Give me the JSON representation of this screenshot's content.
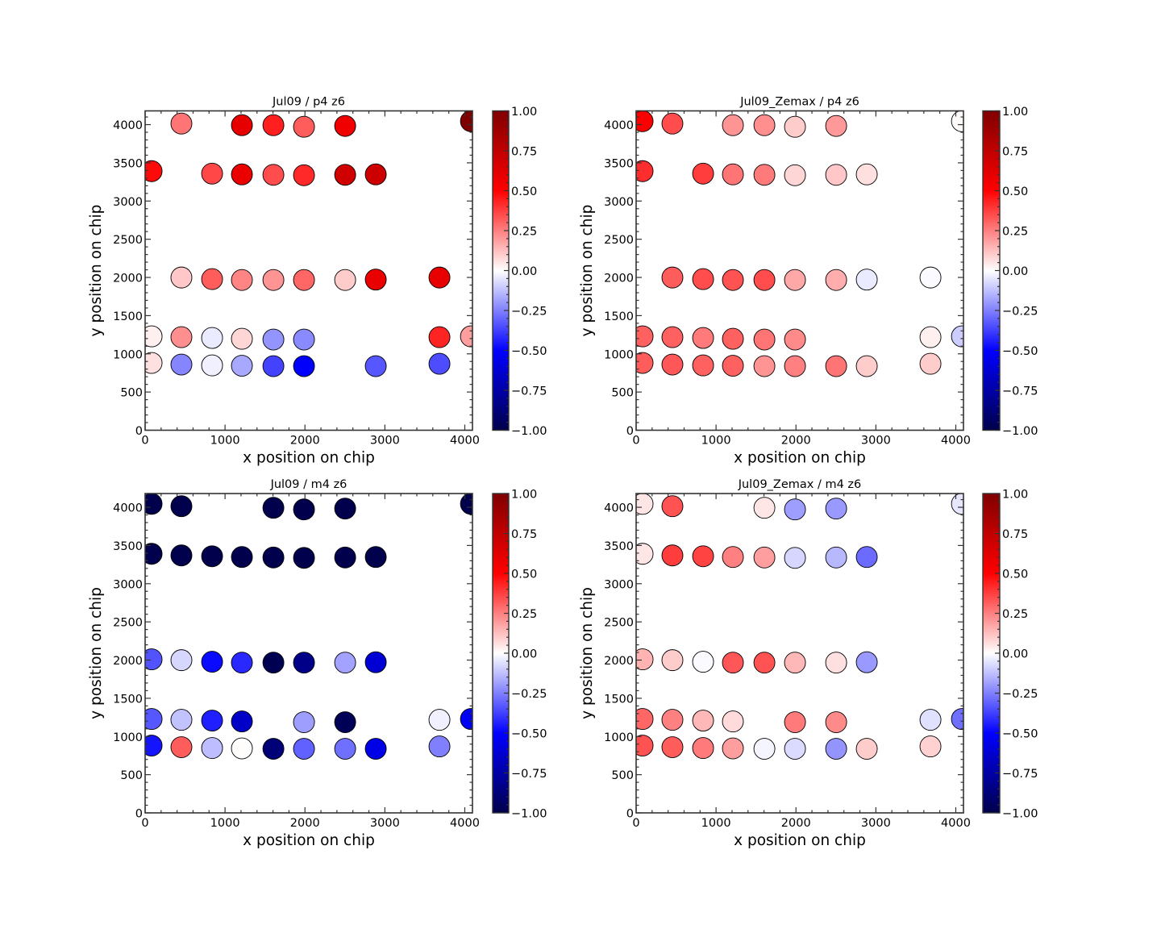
{
  "figure": {
    "colormap": "seismic",
    "colormap_stops": [
      {
        "v": -1.0,
        "color": "#00004c"
      },
      {
        "v": -0.5,
        "color": "#0000ff"
      },
      {
        "v": 0.0,
        "color": "#ffffff"
      },
      {
        "v": 0.5,
        "color": "#ff0000"
      },
      {
        "v": 1.0,
        "color": "#800000"
      }
    ],
    "edge_color": "#000000",
    "spine_color": "#333333"
  },
  "chart_data": [
    {
      "type": "scatter",
      "title": "Jul09 / p4 z6",
      "xlabel": "x position on chip",
      "ylabel": "y position on chip",
      "xlim": [
        0,
        4096
      ],
      "ylim": [
        0,
        4180
      ],
      "xticks": [
        0,
        1000,
        2000,
        3000,
        4000
      ],
      "xtick_labels": [
        "0",
        "1000",
        "2000",
        "3000",
        "4000"
      ],
      "yticks": [
        0,
        500,
        1000,
        1500,
        2000,
        2500,
        3000,
        3500,
        4000
      ],
      "ytick_labels": [
        "0",
        "500",
        "1000",
        "1500",
        "2000",
        "2500",
        "3000",
        "3500",
        "4000"
      ],
      "grid": false,
      "colorbar": {
        "vmin": -1.0,
        "vmax": 1.0,
        "ticks": [
          1.0,
          0.75,
          0.5,
          0.25,
          0.0,
          -0.25,
          -0.5,
          -0.75,
          -1.0
        ],
        "tick_labels": [
          "1.00",
          "0.75",
          "0.50",
          "0.25",
          "0.00",
          "−0.25",
          "−0.50",
          "−0.75",
          "−1.00"
        ]
      },
      "points": [
        {
          "x": 454,
          "y": 4014,
          "c": 0.27
        },
        {
          "x": 1211,
          "y": 3993,
          "c": 0.6
        },
        {
          "x": 1605,
          "y": 3993,
          "c": 0.44
        },
        {
          "x": 1988,
          "y": 3972,
          "c": 0.32
        },
        {
          "x": 2503,
          "y": 3983,
          "c": 0.56
        },
        {
          "x": 4077,
          "y": 4045,
          "c": 1.0
        },
        {
          "x": 81,
          "y": 3391,
          "c": 0.48
        },
        {
          "x": 838,
          "y": 3359,
          "c": 0.36
        },
        {
          "x": 1211,
          "y": 3349,
          "c": 0.58
        },
        {
          "x": 1605,
          "y": 3343,
          "c": 0.35
        },
        {
          "x": 1988,
          "y": 3338,
          "c": 0.42
        },
        {
          "x": 2503,
          "y": 3343,
          "c": 0.68
        },
        {
          "x": 2886,
          "y": 3349,
          "c": 0.7
        },
        {
          "x": 454,
          "y": 1999,
          "c": 0.11
        },
        {
          "x": 838,
          "y": 1978,
          "c": 0.32
        },
        {
          "x": 1211,
          "y": 1967,
          "c": 0.24
        },
        {
          "x": 1605,
          "y": 1967,
          "c": 0.21
        },
        {
          "x": 1988,
          "y": 1967,
          "c": 0.3
        },
        {
          "x": 2503,
          "y": 1967,
          "c": 0.1
        },
        {
          "x": 2886,
          "y": 1972,
          "c": 0.58
        },
        {
          "x": 3683,
          "y": 1999,
          "c": 0.59
        },
        {
          "x": 81,
          "y": 1229,
          "c": 0.03
        },
        {
          "x": 454,
          "y": 1218,
          "c": 0.22
        },
        {
          "x": 838,
          "y": 1208,
          "c": -0.04
        },
        {
          "x": 1211,
          "y": 1197,
          "c": 0.08
        },
        {
          "x": 1605,
          "y": 1187,
          "c": -0.21
        },
        {
          "x": 1988,
          "y": 1187,
          "c": -0.23
        },
        {
          "x": 3683,
          "y": 1218,
          "c": 0.43
        },
        {
          "x": 4077,
          "y": 1229,
          "c": 0.19
        },
        {
          "x": 81,
          "y": 881,
          "c": 0.06
        },
        {
          "x": 454,
          "y": 860,
          "c": -0.24
        },
        {
          "x": 838,
          "y": 849,
          "c": -0.03
        },
        {
          "x": 1211,
          "y": 844,
          "c": -0.17
        },
        {
          "x": 1605,
          "y": 839,
          "c": -0.37
        },
        {
          "x": 1988,
          "y": 839,
          "c": -0.51
        },
        {
          "x": 2886,
          "y": 839,
          "c": -0.33
        },
        {
          "x": 3683,
          "y": 870,
          "c": -0.35
        }
      ]
    },
    {
      "type": "scatter",
      "title": "Jul09_Zemax / p4 z6",
      "xlabel": "x position on chip",
      "ylabel": "y position on chip",
      "xlim": [
        0,
        4096
      ],
      "ylim": [
        0,
        4180
      ],
      "xticks": [
        0,
        1000,
        2000,
        3000,
        4000
      ],
      "xtick_labels": [
        "0",
        "1000",
        "2000",
        "3000",
        "4000"
      ],
      "yticks": [
        0,
        500,
        1000,
        1500,
        2000,
        2500,
        3000,
        3500,
        4000
      ],
      "ytick_labels": [
        "0",
        "500",
        "1000",
        "1500",
        "2000",
        "2500",
        "3000",
        "3500",
        "4000"
      ],
      "grid": false,
      "colorbar": {
        "vmin": -1.0,
        "vmax": 1.0,
        "ticks": [
          1.0,
          0.75,
          0.5,
          0.25,
          0.0,
          -0.25,
          -0.5,
          -0.75,
          -1.0
        ],
        "tick_labels": [
          "1.00",
          "0.75",
          "0.50",
          "0.25",
          "0.00",
          "−0.25",
          "−0.50",
          "−0.75",
          "−1.00"
        ]
      },
      "points": [
        {
          "x": 81,
          "y": 4045,
          "c": 0.52
        },
        {
          "x": 454,
          "y": 4014,
          "c": 0.35
        },
        {
          "x": 1211,
          "y": 3993,
          "c": 0.21
        },
        {
          "x": 1605,
          "y": 3993,
          "c": 0.22
        },
        {
          "x": 1988,
          "y": 3972,
          "c": 0.1
        },
        {
          "x": 2503,
          "y": 3983,
          "c": 0.2
        },
        {
          "x": 4077,
          "y": 4045,
          "c": 0.01
        },
        {
          "x": 81,
          "y": 3391,
          "c": 0.41
        },
        {
          "x": 838,
          "y": 3359,
          "c": 0.38
        },
        {
          "x": 1211,
          "y": 3349,
          "c": 0.27
        },
        {
          "x": 1605,
          "y": 3343,
          "c": 0.26
        },
        {
          "x": 1988,
          "y": 3338,
          "c": 0.08
        },
        {
          "x": 2503,
          "y": 3343,
          "c": 0.11
        },
        {
          "x": 2886,
          "y": 3349,
          "c": 0.06
        },
        {
          "x": 454,
          "y": 1999,
          "c": 0.32
        },
        {
          "x": 838,
          "y": 1978,
          "c": 0.35
        },
        {
          "x": 1211,
          "y": 1967,
          "c": 0.34
        },
        {
          "x": 1605,
          "y": 1967,
          "c": 0.35
        },
        {
          "x": 1988,
          "y": 1967,
          "c": 0.17
        },
        {
          "x": 2503,
          "y": 1967,
          "c": 0.16
        },
        {
          "x": 2886,
          "y": 1972,
          "c": -0.04
        },
        {
          "x": 3683,
          "y": 1999,
          "c": -0.01
        },
        {
          "x": 81,
          "y": 1229,
          "c": 0.31
        },
        {
          "x": 454,
          "y": 1218,
          "c": 0.31
        },
        {
          "x": 838,
          "y": 1208,
          "c": 0.26
        },
        {
          "x": 1211,
          "y": 1197,
          "c": 0.31
        },
        {
          "x": 1605,
          "y": 1187,
          "c": 0.27
        },
        {
          "x": 1988,
          "y": 1187,
          "c": 0.23
        },
        {
          "x": 3683,
          "y": 1218,
          "c": 0.03
        },
        {
          "x": 4077,
          "y": 1229,
          "c": -0.1
        },
        {
          "x": 81,
          "y": 881,
          "c": 0.32
        },
        {
          "x": 454,
          "y": 860,
          "c": 0.33
        },
        {
          "x": 838,
          "y": 849,
          "c": 0.31
        },
        {
          "x": 1211,
          "y": 844,
          "c": 0.31
        },
        {
          "x": 1605,
          "y": 839,
          "c": 0.21
        },
        {
          "x": 1988,
          "y": 839,
          "c": 0.25
        },
        {
          "x": 2503,
          "y": 839,
          "c": 0.27
        },
        {
          "x": 2886,
          "y": 839,
          "c": 0.1
        },
        {
          "x": 3683,
          "y": 870,
          "c": 0.1
        }
      ]
    },
    {
      "type": "scatter",
      "title": "Jul09 / m4 z6",
      "xlabel": "x position on chip",
      "ylabel": "y position on chip",
      "xlim": [
        0,
        4096
      ],
      "ylim": [
        0,
        4180
      ],
      "xticks": [
        0,
        1000,
        2000,
        3000,
        4000
      ],
      "xtick_labels": [
        "0",
        "1000",
        "2000",
        "3000",
        "4000"
      ],
      "yticks": [
        0,
        500,
        1000,
        1500,
        2000,
        2500,
        3000,
        3500,
        4000
      ],
      "ytick_labels": [
        "0",
        "500",
        "1000",
        "1500",
        "2000",
        "2500",
        "3000",
        "3500",
        "4000"
      ],
      "grid": false,
      "colorbar": {
        "vmin": -1.0,
        "vmax": 1.0,
        "ticks": [
          1.0,
          0.75,
          0.5,
          0.25,
          0.0,
          -0.25,
          -0.5,
          -0.75,
          -1.0
        ],
        "tick_labels": [
          "1.00",
          "0.75",
          "0.50",
          "0.25",
          "0.00",
          "−0.25",
          "−0.50",
          "−0.75",
          "−1.00"
        ]
      },
      "points": [
        {
          "x": 81,
          "y": 4045,
          "c": -1.0
        },
        {
          "x": 454,
          "y": 4014,
          "c": -1.0
        },
        {
          "x": 1605,
          "y": 3993,
          "c": -1.0
        },
        {
          "x": 1988,
          "y": 3972,
          "c": -1.0
        },
        {
          "x": 2503,
          "y": 3983,
          "c": -1.0
        },
        {
          "x": 4077,
          "y": 4045,
          "c": -1.0
        },
        {
          "x": 81,
          "y": 3391,
          "c": -1.0
        },
        {
          "x": 454,
          "y": 3370,
          "c": -1.0
        },
        {
          "x": 838,
          "y": 3359,
          "c": -1.0
        },
        {
          "x": 1211,
          "y": 3349,
          "c": -1.0
        },
        {
          "x": 1605,
          "y": 3343,
          "c": -1.0
        },
        {
          "x": 1988,
          "y": 3338,
          "c": -1.0
        },
        {
          "x": 2503,
          "y": 3343,
          "c": -1.0
        },
        {
          "x": 2886,
          "y": 3349,
          "c": -1.0
        },
        {
          "x": 81,
          "y": 2010,
          "c": -0.34
        },
        {
          "x": 454,
          "y": 1999,
          "c": -0.08
        },
        {
          "x": 838,
          "y": 1978,
          "c": -0.48
        },
        {
          "x": 1211,
          "y": 1967,
          "c": -0.42
        },
        {
          "x": 1605,
          "y": 1967,
          "c": -0.98
        },
        {
          "x": 1988,
          "y": 1967,
          "c": -0.83
        },
        {
          "x": 2503,
          "y": 1967,
          "c": -0.18
        },
        {
          "x": 2886,
          "y": 1972,
          "c": -0.62
        },
        {
          "x": 81,
          "y": 1229,
          "c": -0.33
        },
        {
          "x": 454,
          "y": 1218,
          "c": -0.12
        },
        {
          "x": 838,
          "y": 1208,
          "c": -0.44
        },
        {
          "x": 1211,
          "y": 1197,
          "c": -0.66
        },
        {
          "x": 1988,
          "y": 1187,
          "c": -0.19
        },
        {
          "x": 2503,
          "y": 1187,
          "c": -0.97
        },
        {
          "x": 3683,
          "y": 1218,
          "c": -0.03
        },
        {
          "x": 4077,
          "y": 1229,
          "c": -0.53
        },
        {
          "x": 81,
          "y": 881,
          "c": -0.46
        },
        {
          "x": 454,
          "y": 860,
          "c": 0.32
        },
        {
          "x": 838,
          "y": 849,
          "c": -0.13
        },
        {
          "x": 1211,
          "y": 844,
          "c": 0.005
        },
        {
          "x": 1605,
          "y": 839,
          "c": -0.88
        },
        {
          "x": 1988,
          "y": 839,
          "c": -0.31
        },
        {
          "x": 2503,
          "y": 839,
          "c": -0.28
        },
        {
          "x": 2886,
          "y": 839,
          "c": -0.57
        },
        {
          "x": 3683,
          "y": 870,
          "c": -0.25
        }
      ]
    },
    {
      "type": "scatter",
      "title": "Jul09_Zemax / m4 z6",
      "xlabel": "x position on chip",
      "ylabel": "y position on chip",
      "xlim": [
        0,
        4096
      ],
      "ylim": [
        0,
        4180
      ],
      "xticks": [
        0,
        1000,
        2000,
        3000,
        4000
      ],
      "xtick_labels": [
        "0",
        "1000",
        "2000",
        "3000",
        "4000"
      ],
      "yticks": [
        0,
        500,
        1000,
        1500,
        2000,
        2500,
        3000,
        3500,
        4000
      ],
      "ytick_labels": [
        "0",
        "500",
        "1000",
        "1500",
        "2000",
        "2500",
        "3000",
        "3500",
        "4000"
      ],
      "grid": false,
      "colorbar": {
        "vmin": -1.0,
        "vmax": 1.0,
        "ticks": [
          1.0,
          0.75,
          0.5,
          0.25,
          0.0,
          -0.25,
          -0.5,
          -0.75,
          -1.0
        ],
        "tick_labels": [
          "1.00",
          "0.75",
          "0.50",
          "0.25",
          "0.00",
          "−0.25",
          "−0.50",
          "−0.75",
          "−1.00"
        ]
      },
      "points": [
        {
          "x": 81,
          "y": 4045,
          "c": 0.05
        },
        {
          "x": 454,
          "y": 4014,
          "c": 0.34
        },
        {
          "x": 1605,
          "y": 3993,
          "c": 0.05
        },
        {
          "x": 1988,
          "y": 3972,
          "c": -0.19
        },
        {
          "x": 2503,
          "y": 3983,
          "c": -0.2
        },
        {
          "x": 4077,
          "y": 4045,
          "c": -0.05
        },
        {
          "x": 81,
          "y": 3391,
          "c": 0.05
        },
        {
          "x": 454,
          "y": 3370,
          "c": 0.38
        },
        {
          "x": 838,
          "y": 3359,
          "c": 0.37
        },
        {
          "x": 1211,
          "y": 3349,
          "c": 0.25
        },
        {
          "x": 1605,
          "y": 3343,
          "c": 0.19
        },
        {
          "x": 1988,
          "y": 3338,
          "c": -0.08
        },
        {
          "x": 2503,
          "y": 3343,
          "c": -0.14
        },
        {
          "x": 2886,
          "y": 3349,
          "c": -0.29
        },
        {
          "x": 81,
          "y": 2010,
          "c": 0.15
        },
        {
          "x": 454,
          "y": 1999,
          "c": 0.1
        },
        {
          "x": 838,
          "y": 1978,
          "c": -0.01
        },
        {
          "x": 1211,
          "y": 1967,
          "c": 0.33
        },
        {
          "x": 1605,
          "y": 1967,
          "c": 0.34
        },
        {
          "x": 1988,
          "y": 1967,
          "c": 0.14
        },
        {
          "x": 2503,
          "y": 1967,
          "c": 0.06
        },
        {
          "x": 2886,
          "y": 1972,
          "c": -0.2
        },
        {
          "x": 81,
          "y": 1229,
          "c": 0.3
        },
        {
          "x": 454,
          "y": 1218,
          "c": 0.25
        },
        {
          "x": 838,
          "y": 1208,
          "c": 0.14
        },
        {
          "x": 1211,
          "y": 1197,
          "c": 0.07
        },
        {
          "x": 1988,
          "y": 1187,
          "c": 0.26
        },
        {
          "x": 2503,
          "y": 1187,
          "c": 0.23
        },
        {
          "x": 3683,
          "y": 1218,
          "c": -0.06
        },
        {
          "x": 4077,
          "y": 1229,
          "c": -0.28
        },
        {
          "x": 81,
          "y": 881,
          "c": 0.34
        },
        {
          "x": 454,
          "y": 860,
          "c": 0.32
        },
        {
          "x": 838,
          "y": 849,
          "c": 0.26
        },
        {
          "x": 1211,
          "y": 844,
          "c": 0.19
        },
        {
          "x": 1605,
          "y": 839,
          "c": -0.02
        },
        {
          "x": 1988,
          "y": 839,
          "c": -0.07
        },
        {
          "x": 2503,
          "y": 839,
          "c": -0.21
        },
        {
          "x": 2886,
          "y": 839,
          "c": 0.1
        },
        {
          "x": 3683,
          "y": 870,
          "c": 0.09
        }
      ]
    }
  ]
}
